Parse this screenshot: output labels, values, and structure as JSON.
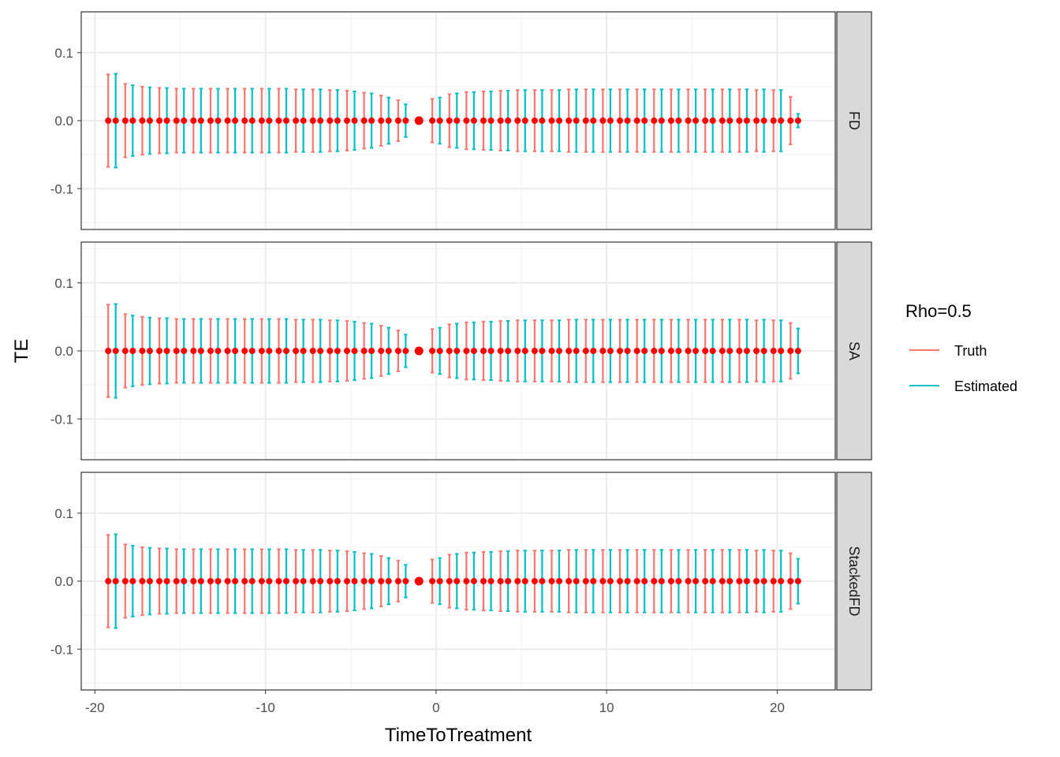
{
  "chart_data": {
    "type": "errorbar",
    "facets": [
      "FD",
      "SA",
      "StackedFD"
    ],
    "xlabel": "TimeToTreatment",
    "ylabel": "TE",
    "xlim": [
      -20.8,
      23.4
    ],
    "ylim": [
      -0.16,
      0.16
    ],
    "xticks": [
      -20,
      -10,
      0,
      10,
      20
    ],
    "xtick_labels": [
      "-20",
      "-10",
      "0",
      "10",
      "20"
    ],
    "yticks": [
      -0.1,
      0.0,
      0.1
    ],
    "ytick_labels": [
      "-0.1",
      "0.0",
      "0.1"
    ],
    "grid": true,
    "legend": {
      "title": "Rho=0.5",
      "placement": "right",
      "entries": [
        {
          "label": "Truth",
          "color": "#F8766D"
        },
        {
          "label": "Estimated",
          "color": "#00BFC4"
        }
      ]
    },
    "colors": {
      "truth": "#F8766D",
      "estimated": "#00BFC4",
      "point": "#FF0000"
    },
    "x": [
      -19,
      -18,
      -17,
      -16,
      -15,
      -14,
      -13,
      -12,
      -11,
      -10,
      -9,
      -8,
      -7,
      -6,
      -5,
      -4,
      -3,
      -2,
      -1,
      0,
      1,
      2,
      3,
      4,
      5,
      6,
      7,
      8,
      9,
      10,
      11,
      12,
      13,
      14,
      15,
      16,
      17,
      18,
      19,
      20,
      21
    ],
    "panels": [
      {
        "facet": "FD",
        "series": [
          {
            "name": "Truth",
            "estimate": 0.0,
            "upper": [
              0.068,
              0.054,
              0.05,
              0.048,
              0.047,
              0.047,
              0.047,
              0.047,
              0.047,
              0.047,
              0.047,
              0.046,
              0.046,
              0.045,
              0.044,
              0.041,
              0.037,
              0.03,
              0.0,
              0.032,
              0.039,
              0.042,
              0.043,
              0.044,
              0.045,
              0.045,
              0.045,
              0.046,
              0.046,
              0.046,
              0.046,
              0.046,
              0.046,
              0.046,
              0.046,
              0.046,
              0.046,
              0.046,
              0.045,
              0.045,
              0.035
            ]
          },
          {
            "name": "Estimated",
            "estimate": 0.0,
            "upper": [
              0.069,
              0.052,
              0.049,
              0.048,
              0.047,
              0.047,
              0.047,
              0.047,
              0.047,
              0.047,
              0.047,
              0.046,
              0.046,
              0.045,
              0.043,
              0.04,
              0.034,
              0.024,
              0.0,
              0.034,
              0.04,
              0.042,
              0.043,
              0.044,
              0.045,
              0.045,
              0.045,
              0.046,
              0.046,
              0.046,
              0.046,
              0.046,
              0.046,
              0.046,
              0.046,
              0.046,
              0.046,
              0.046,
              0.046,
              0.045,
              0.01
            ]
          }
        ]
      },
      {
        "facet": "SA",
        "series": [
          {
            "name": "Truth",
            "estimate": 0.0,
            "upper": [
              0.068,
              0.054,
              0.05,
              0.048,
              0.047,
              0.047,
              0.047,
              0.047,
              0.047,
              0.047,
              0.047,
              0.046,
              0.046,
              0.045,
              0.044,
              0.041,
              0.037,
              0.03,
              0.0,
              0.032,
              0.039,
              0.042,
              0.043,
              0.044,
              0.045,
              0.045,
              0.045,
              0.046,
              0.046,
              0.046,
              0.046,
              0.046,
              0.046,
              0.046,
              0.046,
              0.046,
              0.046,
              0.046,
              0.045,
              0.045,
              0.041
            ]
          },
          {
            "name": "Estimated",
            "estimate": 0.0,
            "upper": [
              0.069,
              0.052,
              0.049,
              0.048,
              0.047,
              0.047,
              0.047,
              0.047,
              0.047,
              0.047,
              0.047,
              0.046,
              0.046,
              0.045,
              0.043,
              0.04,
              0.034,
              0.024,
              0.0,
              0.034,
              0.04,
              0.042,
              0.043,
              0.044,
              0.045,
              0.045,
              0.045,
              0.046,
              0.046,
              0.046,
              0.046,
              0.046,
              0.046,
              0.046,
              0.046,
              0.046,
              0.046,
              0.046,
              0.046,
              0.045,
              0.033
            ]
          }
        ]
      },
      {
        "facet": "StackedFD",
        "series": [
          {
            "name": "Truth",
            "estimate": 0.0,
            "upper": [
              0.068,
              0.054,
              0.05,
              0.048,
              0.047,
              0.047,
              0.047,
              0.047,
              0.047,
              0.047,
              0.047,
              0.046,
              0.046,
              0.045,
              0.044,
              0.041,
              0.037,
              0.03,
              0.0,
              0.032,
              0.039,
              0.042,
              0.043,
              0.044,
              0.045,
              0.045,
              0.045,
              0.046,
              0.046,
              0.046,
              0.046,
              0.046,
              0.046,
              0.046,
              0.046,
              0.046,
              0.046,
              0.046,
              0.045,
              0.045,
              0.041
            ]
          },
          {
            "name": "Estimated",
            "estimate": 0.0,
            "upper": [
              0.069,
              0.052,
              0.049,
              0.048,
              0.047,
              0.047,
              0.047,
              0.047,
              0.047,
              0.047,
              0.047,
              0.046,
              0.046,
              0.045,
              0.043,
              0.04,
              0.034,
              0.024,
              0.0,
              0.034,
              0.04,
              0.042,
              0.043,
              0.044,
              0.045,
              0.045,
              0.045,
              0.046,
              0.046,
              0.046,
              0.046,
              0.046,
              0.046,
              0.046,
              0.046,
              0.046,
              0.046,
              0.046,
              0.046,
              0.045,
              0.033
            ]
          }
        ]
      }
    ]
  }
}
